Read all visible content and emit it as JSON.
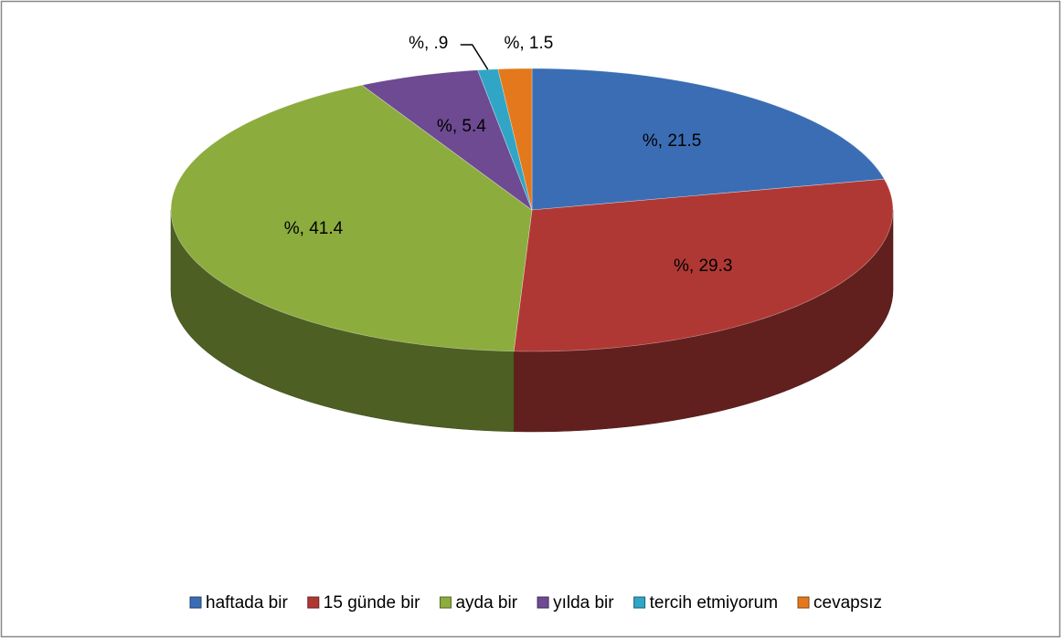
{
  "chart_data": {
    "type": "pie",
    "categories": [
      "haftada bir",
      "15 günde bir",
      "ayda bir",
      "yılda bir",
      "tercih etmiyorum",
      "cevapsız"
    ],
    "values": [
      21.5,
      29.3,
      41.4,
      5.4,
      0.9,
      1.5
    ],
    "value_labels": [
      "%, 21.5",
      "%, 29.3",
      "%, 41.4",
      "%, 5.4",
      "%, .9",
      "%, 1.5"
    ],
    "colors": [
      "#3b6db4",
      "#b03834",
      "#8cac3e",
      "#6d4a91",
      "#31a5c5",
      "#e3791c"
    ],
    "legend": "bottom"
  }
}
